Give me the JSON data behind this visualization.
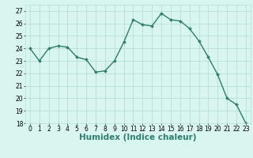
{
  "x": [
    0,
    1,
    2,
    3,
    4,
    5,
    6,
    7,
    8,
    9,
    10,
    11,
    12,
    13,
    14,
    15,
    16,
    17,
    18,
    19,
    20,
    21,
    22,
    23
  ],
  "y": [
    24.0,
    23.0,
    24.0,
    24.2,
    24.1,
    23.3,
    23.1,
    22.1,
    22.2,
    23.0,
    24.5,
    26.3,
    25.9,
    25.8,
    26.8,
    26.3,
    26.2,
    25.6,
    24.6,
    23.3,
    21.9,
    20.0,
    19.5,
    18.0
  ],
  "line_color": "#2e7d6e",
  "marker": "D",
  "marker_size": 2.0,
  "bg_color": "#d8f5f0",
  "grid_color": "#b8ddd8",
  "xlabel": "Humidex (Indice chaleur)",
  "ylim": [
    18,
    27.5
  ],
  "xlim": [
    -0.5,
    23.5
  ],
  "yticks": [
    18,
    19,
    20,
    21,
    22,
    23,
    24,
    25,
    26,
    27
  ],
  "xticks": [
    0,
    1,
    2,
    3,
    4,
    5,
    6,
    7,
    8,
    9,
    10,
    11,
    12,
    13,
    14,
    15,
    16,
    17,
    18,
    19,
    20,
    21,
    22,
    23
  ],
  "tick_fontsize": 5.5,
  "xlabel_fontsize": 7.5,
  "line_width": 1.0
}
